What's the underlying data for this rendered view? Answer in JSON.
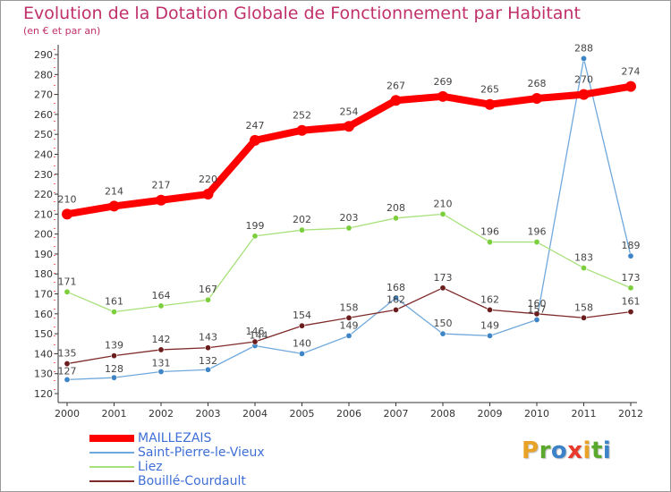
{
  "colors": {
    "title": "#c0306a",
    "axis": "#333333",
    "grid": "#cccccc",
    "legend_text": "#3f6fd6"
  },
  "logo": {
    "letters": [
      {
        "char": "P",
        "color": "#e8a225"
      },
      {
        "char": "r",
        "color": "#5aa82d"
      },
      {
        "char": "o",
        "color": "#3b82c9"
      },
      {
        "char": "x",
        "color": "#e8392b"
      },
      {
        "char": "i",
        "color": "#e8a225"
      },
      {
        "char": "t",
        "color": "#5aa82d"
      },
      {
        "char": "i",
        "color": "#3b82c9"
      }
    ]
  },
  "chart_data": {
    "type": "line",
    "title": "Evolution de la Dotation Globale de Fonctionnement par Habitant",
    "subtitle": "(en € et par an)",
    "xlabel": "",
    "ylabel": "",
    "categories": [
      "2000",
      "2001",
      "2002",
      "2003",
      "2004",
      "2005",
      "2006",
      "2007",
      "2008",
      "2009",
      "2010",
      "2011",
      "2012"
    ],
    "ylim": [
      120,
      290
    ],
    "yticks": [
      120,
      130,
      140,
      150,
      160,
      170,
      180,
      190,
      200,
      210,
      220,
      230,
      240,
      250,
      260,
      270,
      280,
      290
    ],
    "grid": false,
    "legend_position": "bottom-left",
    "series": [
      {
        "name": "MAILLEZAIS",
        "color": "#ff0000",
        "width": 8,
        "values": [
          210,
          214,
          217,
          220,
          247,
          252,
          254,
          267,
          269,
          265,
          268,
          270,
          274
        ],
        "labels": [
          "210",
          "214",
          "217",
          "220",
          "247",
          "252",
          "254",
          "267",
          "269",
          "265",
          "268",
          "270",
          "274"
        ]
      },
      {
        "name": "Saint-Pierre-le-Vieux",
        "color": "#6fa8dc",
        "marker": "#3d85c6",
        "width": 1.3,
        "values": [
          127,
          128,
          131,
          132,
          144,
          140,
          149,
          168,
          150,
          149,
          157,
          288,
          189
        ],
        "labels": [
          "127",
          "128",
          "131",
          "132",
          "144",
          "140",
          "149",
          "168",
          "150",
          "149",
          "157",
          "288",
          "189"
        ]
      },
      {
        "name": "Liez",
        "color": "#a8e07a",
        "marker": "#7ccf3c",
        "width": 1.3,
        "values": [
          171,
          161,
          164,
          167,
          199,
          202,
          203,
          208,
          210,
          196,
          196,
          183,
          173
        ],
        "labels": [
          "171",
          "161",
          "164",
          "167",
          "199",
          "202",
          "203",
          "208",
          "210",
          "196",
          "196",
          "183",
          "173"
        ]
      },
      {
        "name": "Bouillé-Courdault",
        "color": "#7f2a2a",
        "marker": "#6b1d1d",
        "width": 1.3,
        "values": [
          135,
          139,
          142,
          143,
          146,
          154,
          158,
          162,
          173,
          162,
          160,
          158,
          161
        ],
        "labels": [
          "135",
          "139",
          "142",
          "143",
          "146",
          "154",
          "158",
          "162",
          "173",
          "162",
          "160",
          "158",
          "161"
        ]
      }
    ]
  }
}
